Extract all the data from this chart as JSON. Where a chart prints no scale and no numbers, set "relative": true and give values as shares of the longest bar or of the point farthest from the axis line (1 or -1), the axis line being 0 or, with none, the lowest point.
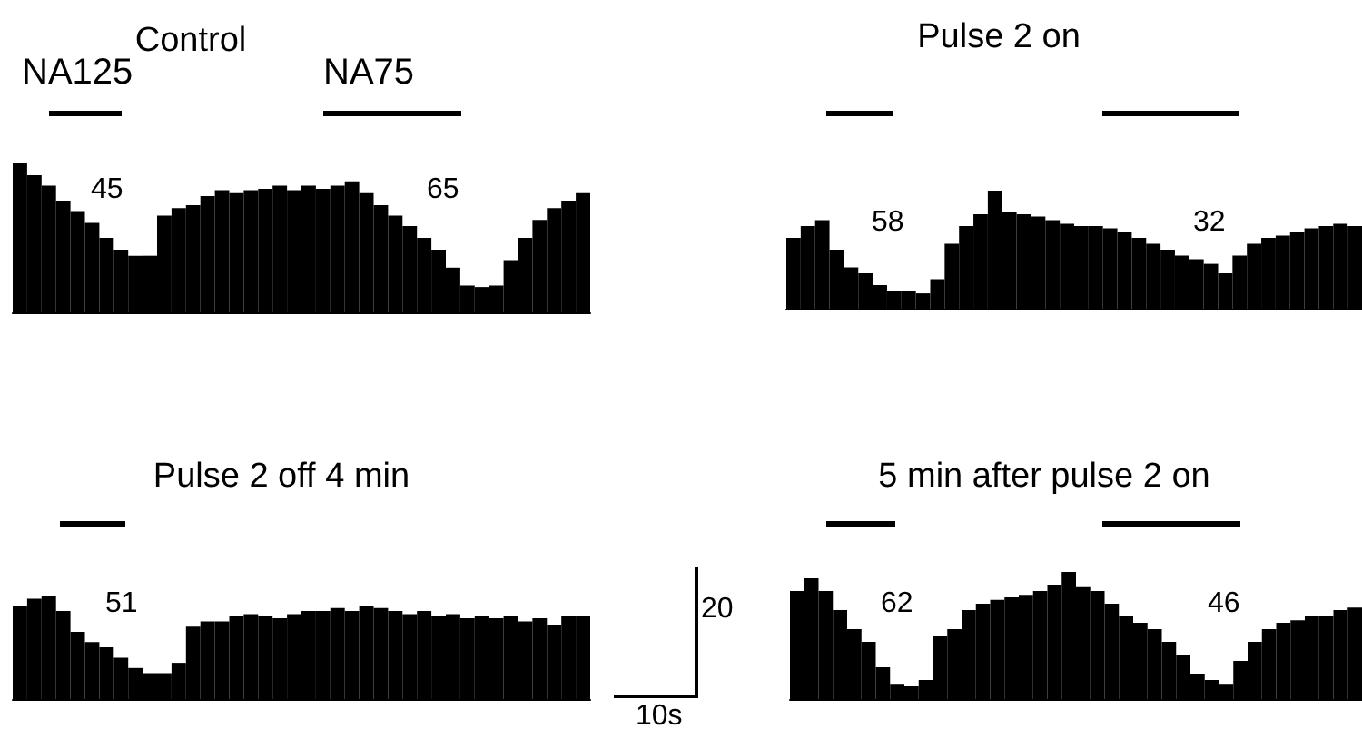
{
  "chart_data": [
    {
      "type": "bar",
      "title": "Control",
      "relative": true,
      "color": "#000000",
      "annotations": [
        "NA125",
        "NA75",
        "45",
        "65"
      ],
      "categories": [
        null,
        null,
        null,
        null,
        null,
        null,
        null,
        null,
        null,
        null,
        null,
        null,
        null,
        null,
        null,
        null,
        null,
        null,
        null,
        null,
        null,
        null,
        null,
        null,
        null,
        null,
        null,
        null,
        null,
        null,
        null,
        null,
        null,
        null,
        null,
        null,
        null,
        null,
        null,
        null
      ],
      "values": [
        1.0,
        0.92,
        0.85,
        0.75,
        0.68,
        0.6,
        0.5,
        0.42,
        0.38,
        0.38,
        0.65,
        0.7,
        0.72,
        0.78,
        0.82,
        0.8,
        0.82,
        0.83,
        0.85,
        0.82,
        0.85,
        0.83,
        0.85,
        0.88,
        0.8,
        0.72,
        0.65,
        0.58,
        0.5,
        0.42,
        0.3,
        0.18,
        0.17,
        0.18,
        0.35,
        0.5,
        0.62,
        0.7,
        0.75,
        0.8
      ]
    },
    {
      "type": "bar",
      "title": "Pulse 2 on",
      "relative": true,
      "color": "#000000",
      "annotations": [
        "58",
        "32"
      ],
      "categories": [
        null,
        null,
        null,
        null,
        null,
        null,
        null,
        null,
        null,
        null,
        null,
        null,
        null,
        null,
        null,
        null,
        null,
        null,
        null,
        null,
        null,
        null,
        null,
        null,
        null,
        null,
        null,
        null,
        null,
        null,
        null,
        null,
        null,
        null,
        null,
        null,
        null,
        null,
        null,
        null
      ],
      "values": [
        0.6,
        0.7,
        0.75,
        0.5,
        0.35,
        0.3,
        0.2,
        0.15,
        0.15,
        0.13,
        0.25,
        0.55,
        0.7,
        0.8,
        1.0,
        0.82,
        0.8,
        0.78,
        0.75,
        0.72,
        0.7,
        0.7,
        0.68,
        0.65,
        0.6,
        0.55,
        0.5,
        0.45,
        0.42,
        0.38,
        0.3,
        0.45,
        0.55,
        0.6,
        0.62,
        0.65,
        0.68,
        0.7,
        0.72,
        0.7
      ]
    },
    {
      "type": "bar",
      "title": "Pulse 2 off 4 min",
      "relative": true,
      "color": "#000000",
      "annotations": [
        "51"
      ],
      "categories": [
        null,
        null,
        null,
        null,
        null,
        null,
        null,
        null,
        null,
        null,
        null,
        null,
        null,
        null,
        null,
        null,
        null,
        null,
        null,
        null,
        null,
        null,
        null,
        null,
        null,
        null,
        null,
        null,
        null,
        null,
        null,
        null,
        null,
        null,
        null,
        null,
        null,
        null,
        null,
        null
      ],
      "values": [
        0.9,
        0.97,
        1.0,
        0.85,
        0.65,
        0.55,
        0.5,
        0.4,
        0.3,
        0.25,
        0.25,
        0.35,
        0.7,
        0.75,
        0.75,
        0.8,
        0.82,
        0.8,
        0.78,
        0.82,
        0.85,
        0.85,
        0.88,
        0.85,
        0.9,
        0.88,
        0.85,
        0.82,
        0.85,
        0.8,
        0.82,
        0.78,
        0.8,
        0.78,
        0.8,
        0.75,
        0.78,
        0.72,
        0.8,
        0.8
      ]
    },
    {
      "type": "bar",
      "title": "5 min after pulse 2 on",
      "relative": true,
      "color": "#000000",
      "annotations": [
        "62",
        "46",
        "20",
        "10s"
      ],
      "categories": [
        null,
        null,
        null,
        null,
        null,
        null,
        null,
        null,
        null,
        null,
        null,
        null,
        null,
        null,
        null,
        null,
        null,
        null,
        null,
        null,
        null,
        null,
        null,
        null,
        null,
        null,
        null,
        null,
        null,
        null,
        null,
        null,
        null,
        null,
        null,
        null,
        null,
        null,
        null,
        null
      ],
      "values": [
        0.85,
        0.95,
        0.85,
        0.7,
        0.55,
        0.45,
        0.25,
        0.12,
        0.1,
        0.15,
        0.5,
        0.55,
        0.7,
        0.75,
        0.78,
        0.8,
        0.82,
        0.85,
        0.9,
        1.0,
        0.88,
        0.85,
        0.75,
        0.65,
        0.6,
        0.55,
        0.45,
        0.35,
        0.2,
        0.15,
        0.12,
        0.3,
        0.45,
        0.55,
        0.6,
        0.62,
        0.65,
        0.65,
        0.7,
        0.72
      ]
    }
  ]
}
